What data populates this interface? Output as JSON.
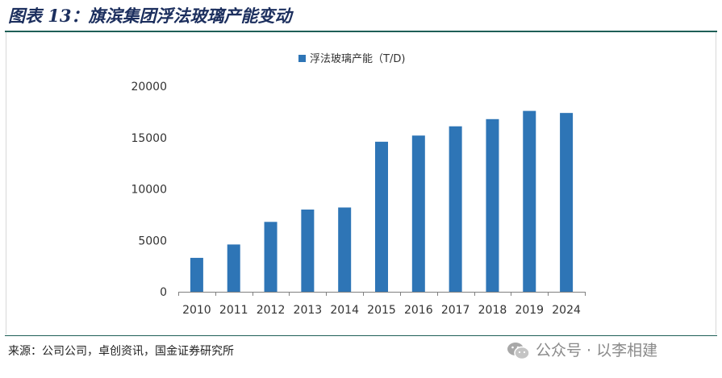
{
  "header": {
    "title": "图表 13：旗滨集团浮法玻璃产能变动"
  },
  "footer": {
    "source": "来源：公司公司，卓创资讯，国金证券研究所"
  },
  "watermark": {
    "text": "公众号 · 以李相建",
    "icon": "wechat-icon"
  },
  "colors": {
    "bar": "#2e75b6",
    "title": "#1c2f5e",
    "rule": "#1f5f57"
  },
  "chart_data": {
    "type": "bar",
    "categories": [
      "2010",
      "2011",
      "2012",
      "2013",
      "2014",
      "2015",
      "2016",
      "2017",
      "2018",
      "2019",
      "2024"
    ],
    "series": [
      {
        "name": "浮法玻璃产能（T/D)",
        "values": [
          3300,
          4600,
          6800,
          8000,
          8200,
          14600,
          15200,
          16100,
          16800,
          17600,
          17400
        ]
      }
    ],
    "yticks": [
      "0",
      "5000",
      "10000",
      "15000",
      "20000"
    ],
    "ylim": [
      0,
      20000
    ],
    "legend_position": "top-center",
    "grid": false
  }
}
